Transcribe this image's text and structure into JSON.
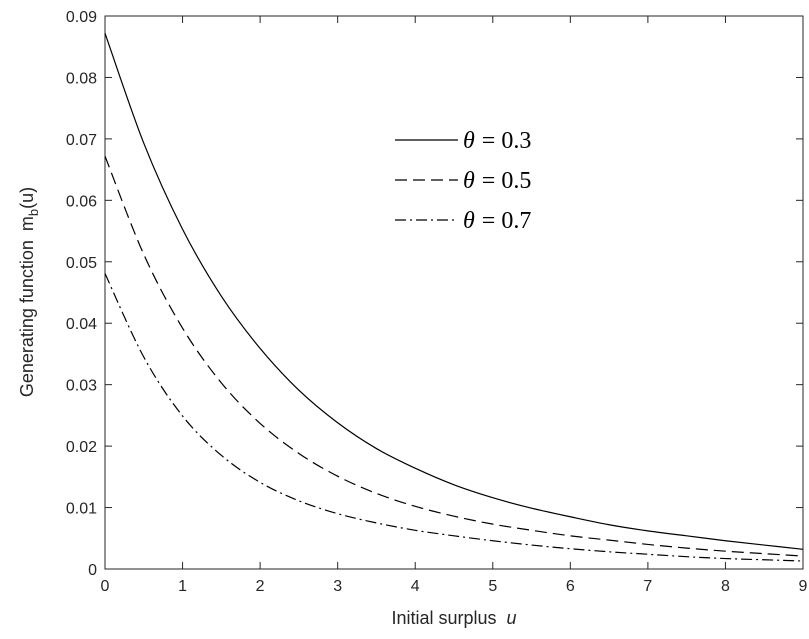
{
  "chart_data": {
    "type": "line",
    "xlabel": "Initial surplus",
    "xlabel_var": "u",
    "ylabel": "Generating function",
    "ylabel_sym": "m",
    "ylabel_sub": "b",
    "ylabel_arg": "(u)",
    "xlim": [
      0,
      9
    ],
    "ylim": [
      0,
      0.09
    ],
    "x_ticks": [
      "0",
      "1",
      "2",
      "3",
      "4",
      "5",
      "6",
      "7",
      "8",
      "9"
    ],
    "y_ticks": [
      "0",
      "0.01",
      "0.02",
      "0.03",
      "0.04",
      "0.05",
      "0.06",
      "0.07",
      "0.08",
      "0.09"
    ],
    "grid": false,
    "legend_position": "top-right",
    "x": [
      0,
      0.5,
      1,
      1.5,
      2,
      2.5,
      3,
      3.5,
      4,
      4.5,
      5,
      5.5,
      6,
      6.5,
      7,
      7.5,
      8,
      8.5,
      9
    ],
    "series": [
      {
        "name": "θ = 0.3",
        "label_symbol": "θ",
        "label_value": "= 0.3",
        "style": "solid",
        "values": [
          0.0872,
          0.0693,
          0.0553,
          0.0444,
          0.0359,
          0.0291,
          0.0238,
          0.0196,
          0.0164,
          0.0137,
          0.0116,
          0.0099,
          0.0085,
          0.0072,
          0.0062,
          0.0054,
          0.0046,
          0.0039,
          0.0032
        ]
      },
      {
        "name": "θ = 0.5",
        "label_symbol": "θ",
        "label_value": "= 0.5",
        "style": "dashed",
        "values": [
          0.0672,
          0.0512,
          0.0392,
          0.0303,
          0.0237,
          0.0188,
          0.0151,
          0.0123,
          0.0102,
          0.0086,
          0.0073,
          0.0063,
          0.0054,
          0.0047,
          0.004,
          0.0034,
          0.0029,
          0.0025,
          0.0021
        ]
      },
      {
        "name": "θ = 0.7",
        "label_symbol": "θ",
        "label_value": "= 0.7",
        "style": "dashdot",
        "values": [
          0.0481,
          0.0345,
          0.0249,
          0.0185,
          0.0141,
          0.0111,
          0.009,
          0.0075,
          0.0063,
          0.0054,
          0.0046,
          0.0039,
          0.0033,
          0.0028,
          0.0024,
          0.002,
          0.0017,
          0.0015,
          0.0013
        ]
      }
    ]
  }
}
